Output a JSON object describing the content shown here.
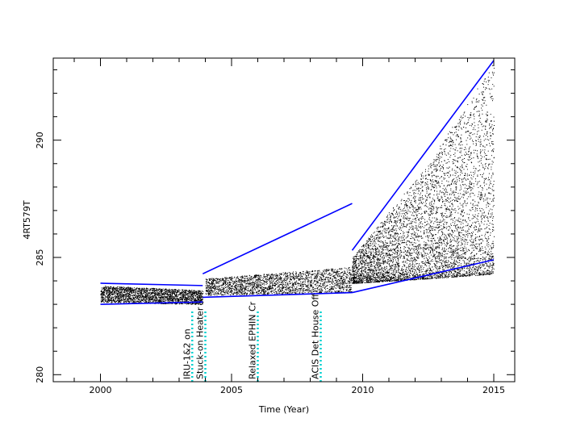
{
  "chart_data": {
    "type": "scatter",
    "title": "",
    "xlabel": "Time (Year)",
    "ylabel": "4RT579T",
    "xlim": [
      1998.2,
      2015.8
    ],
    "ylim": [
      279.7,
      293.5
    ],
    "xticks": [
      2000,
      2005,
      2010,
      2015
    ],
    "yticks": [
      280,
      285,
      290
    ],
    "grid": false,
    "colors": {
      "points": "#000000",
      "trend": "#0000ff",
      "event_line": "#00d0d0",
      "axes": "#000000"
    },
    "point_bands": [
      {
        "x": [
          2000.0,
          2003.9
        ],
        "low": [
          283.1,
          283.0
        ],
        "high": [
          283.8,
          283.6
        ]
      },
      {
        "x": [
          2004.0,
          2009.6
        ],
        "low": [
          283.4,
          283.5
        ],
        "high": [
          284.1,
          284.6
        ]
      },
      {
        "x": [
          2009.6,
          2012.5
        ],
        "low": [
          283.9,
          284.1
        ],
        "high": [
          285.0,
          289.0
        ]
      },
      {
        "x": [
          2012.5,
          2015.0
        ],
        "low": [
          284.1,
          284.3
        ],
        "high": [
          289.0,
          293.3
        ]
      }
    ],
    "trend_lines": [
      {
        "name": "upper-2000",
        "x": [
          2000.0,
          2003.9
        ],
        "y": [
          283.9,
          283.8
        ]
      },
      {
        "name": "lower-2000",
        "x": [
          2000.0,
          2003.9
        ],
        "y": [
          283.0,
          283.1
        ]
      },
      {
        "name": "upper-2004",
        "x": [
          2003.9,
          2009.6
        ],
        "y": [
          284.3,
          287.3
        ]
      },
      {
        "name": "upper-2009",
        "x": [
          2009.6,
          2015.0
        ],
        "y": [
          285.3,
          293.4
        ]
      },
      {
        "name": "lower-2004",
        "x": [
          2003.9,
          2009.6
        ],
        "y": [
          283.3,
          283.5
        ]
      },
      {
        "name": "lower-2009",
        "x": [
          2009.6,
          2015.0
        ],
        "y": [
          283.5,
          284.9
        ]
      }
    ],
    "events": [
      {
        "year": 2003.5,
        "label": "IRU-1&2 on"
      },
      {
        "year": 2004.0,
        "label": "Stuck-on Heater"
      },
      {
        "year": 2006.0,
        "label": "Relaxed EPHIN Cr"
      },
      {
        "year": 2008.4,
        "label": "ACIS Det House Off"
      }
    ]
  }
}
